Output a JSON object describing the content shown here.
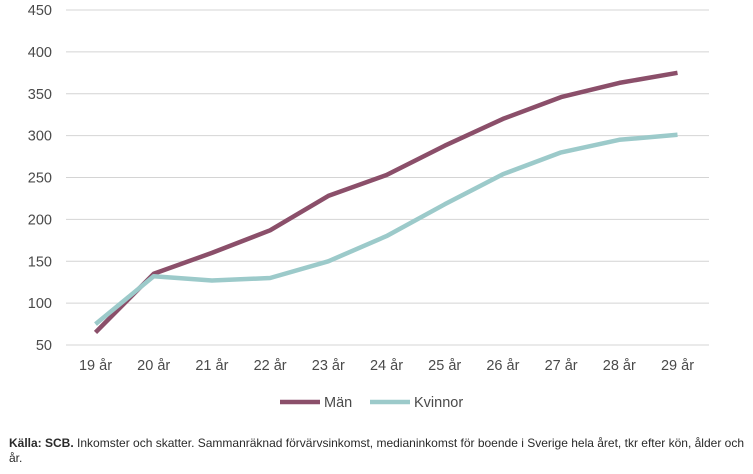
{
  "chart_data": {
    "type": "line",
    "categories": [
      "19 år",
      "20 år",
      "21 år",
      "22 år",
      "23 år",
      "24 år",
      "25 år",
      "26 år",
      "27 år",
      "28 år",
      "29 år"
    ],
    "series": [
      {
        "name": "Män",
        "color": "#8b4f6a",
        "values": [
          65,
          135,
          160,
          187,
          228,
          253,
          288,
          320,
          346,
          363,
          375
        ]
      },
      {
        "name": "Kvinnor",
        "color": "#9ccaca",
        "values": [
          75,
          132,
          127,
          130,
          150,
          180,
          218,
          254,
          280,
          295,
          301
        ]
      }
    ],
    "ylim": [
      50,
      450
    ],
    "yticks": [
      50,
      100,
      150,
      200,
      250,
      300,
      350,
      400,
      450
    ],
    "grid": true,
    "legend_position": "bottom-center",
    "title": "",
    "xlabel": "",
    "ylabel": ""
  },
  "source": {
    "bold": "Källa: SCB.",
    "text": " Inkomster och skatter. Sammanräknad förvärvsinkomst, medianinkomst för boende i Sverige hela året, tkr efter kön, ålder och år."
  }
}
